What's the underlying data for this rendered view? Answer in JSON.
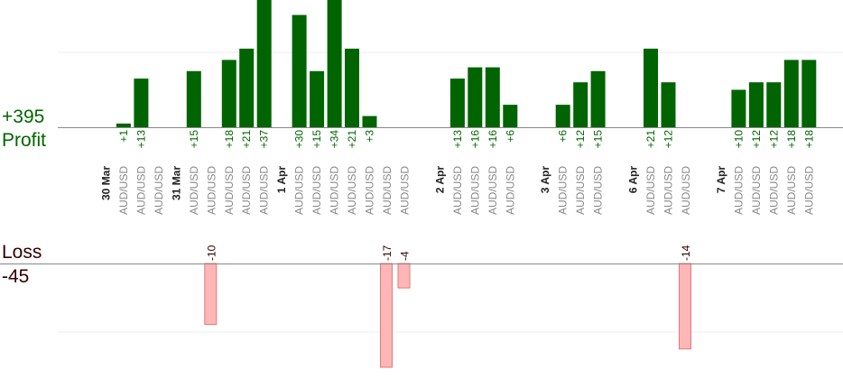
{
  "summary": {
    "profit_total": "+395",
    "profit_label": "Profit",
    "loss_label": "Loss",
    "loss_total": "-45"
  },
  "colors": {
    "profit_bar": "#006400",
    "profit_text": "#006600",
    "loss_bar_fill": "#ffb6b6",
    "loss_bar_stroke": "#e07a7a",
    "loss_text": "#330000",
    "date_text": "#222222",
    "instrument_text": "#888888",
    "axis": "#888888",
    "grid": "#eeeeee"
  },
  "chart_data": {
    "type": "bar",
    "profit_axis_range": [
      0,
      34
    ],
    "loss_axis_range": [
      -17,
      0
    ],
    "dates": [
      "30 Mar",
      "31 Mar",
      "1 Apr",
      "2 Apr",
      "3 Apr",
      "6 Apr",
      "7 Apr"
    ],
    "trades": [
      {
        "slot": 2,
        "instrument": "AUD/USD",
        "value": 1
      },
      {
        "slot": 3,
        "instrument": "AUD/USD",
        "value": 13
      },
      {
        "slot": 4,
        "instrument": "AUD/USD",
        "value": null
      },
      {
        "slot": 6,
        "instrument": "AUD/USD",
        "value": 15
      },
      {
        "slot": 7,
        "instrument": "AUD/USD",
        "value": -10
      },
      {
        "slot": 8,
        "instrument": "AUD/USD",
        "value": 18
      },
      {
        "slot": 9,
        "instrument": "AUD/USD",
        "value": 21
      },
      {
        "slot": 10,
        "instrument": "AUD/USD",
        "value": 37
      },
      {
        "slot": 12,
        "instrument": "AUD/USD",
        "value": 30
      },
      {
        "slot": 13,
        "instrument": "AUD/USD",
        "value": 15
      },
      {
        "slot": 14,
        "instrument": "AUD/USD",
        "value": 34
      },
      {
        "slot": 15,
        "instrument": "AUD/USD",
        "value": 21
      },
      {
        "slot": 16,
        "instrument": "AUD/USD",
        "value": 3
      },
      {
        "slot": 17,
        "instrument": "AUD/USD",
        "value": -17
      },
      {
        "slot": 18,
        "instrument": "AUD/USD",
        "value": -4
      },
      {
        "slot": 21,
        "instrument": "AUD/USD",
        "value": 13
      },
      {
        "slot": 22,
        "instrument": "AUD/USD",
        "value": 16
      },
      {
        "slot": 23,
        "instrument": "AUD/USD",
        "value": 16
      },
      {
        "slot": 24,
        "instrument": "AUD/USD",
        "value": 6
      },
      {
        "slot": 27,
        "instrument": "AUD/USD",
        "value": 6
      },
      {
        "slot": 28,
        "instrument": "AUD/USD",
        "value": 12
      },
      {
        "slot": 29,
        "instrument": "AUD/USD",
        "value": 15
      },
      {
        "slot": 32,
        "instrument": "AUD/USD",
        "value": 21
      },
      {
        "slot": 33,
        "instrument": "AUD/USD",
        "value": 12
      },
      {
        "slot": 34,
        "instrument": "AUD/USD",
        "value": -14
      },
      {
        "slot": 37,
        "instrument": "AUD/USD",
        "value": 10
      },
      {
        "slot": 38,
        "instrument": "AUD/USD",
        "value": 12
      },
      {
        "slot": 39,
        "instrument": "AUD/USD",
        "value": 12
      },
      {
        "slot": 40,
        "instrument": "AUD/USD",
        "value": 18
      },
      {
        "slot": 41,
        "instrument": "AUD/USD",
        "value": 18
      }
    ],
    "date_slots": [
      1,
      5,
      11,
      20,
      26,
      31,
      36
    ],
    "grid": true,
    "legend": "none"
  }
}
